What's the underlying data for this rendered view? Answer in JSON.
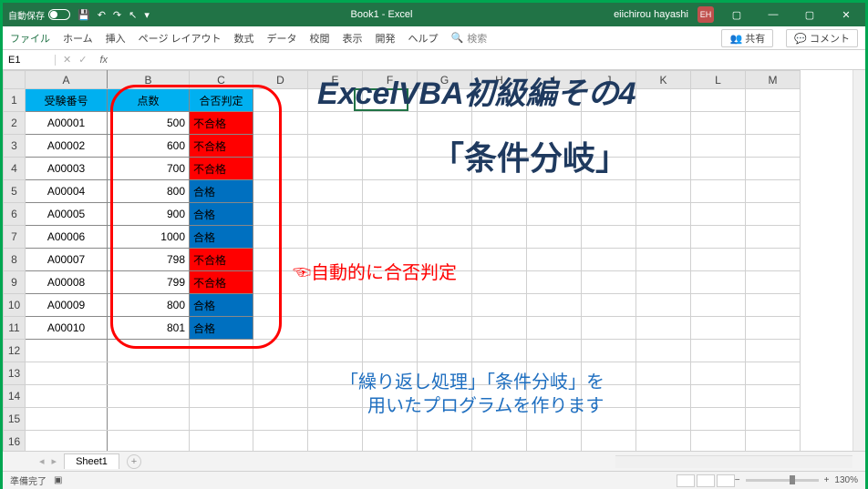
{
  "titlebar": {
    "autosave_label": "自動保存",
    "autosave_state": "オフ",
    "doc_title": "Book1 - Excel",
    "username": "eiichirou hayashi",
    "user_initials": "EH"
  },
  "ribbon": {
    "tabs": [
      "ファイル",
      "ホーム",
      "挿入",
      "ページ レイアウト",
      "数式",
      "データ",
      "校閲",
      "表示",
      "開発",
      "ヘルプ"
    ],
    "search_icon": "search-icon",
    "search_label": "検索",
    "share": "共有",
    "comment": "コメント"
  },
  "namebox": {
    "cell": "E1",
    "fx": "fx"
  },
  "columns": [
    "A",
    "B",
    "C",
    "D",
    "E",
    "F",
    "G",
    "H",
    "I",
    "J",
    "K",
    "L",
    "M"
  ],
  "rowcount": 17,
  "table": {
    "headers": {
      "A": "受験番号",
      "B": "点数",
      "C": "合否判定"
    },
    "rows": [
      {
        "id": "A00001",
        "score": 500,
        "result": "不合格",
        "status": "fail"
      },
      {
        "id": "A00002",
        "score": 600,
        "result": "不合格",
        "status": "fail"
      },
      {
        "id": "A00003",
        "score": 700,
        "result": "不合格",
        "status": "fail"
      },
      {
        "id": "A00004",
        "score": 800,
        "result": "合格",
        "status": "pass"
      },
      {
        "id": "A00005",
        "score": 900,
        "result": "合格",
        "status": "pass"
      },
      {
        "id": "A00006",
        "score": 1000,
        "result": "合格",
        "status": "pass"
      },
      {
        "id": "A00007",
        "score": 798,
        "result": "不合格",
        "status": "fail"
      },
      {
        "id": "A00008",
        "score": 799,
        "result": "不合格",
        "status": "fail"
      },
      {
        "id": "A00009",
        "score": 800,
        "result": "合格",
        "status": "pass"
      },
      {
        "id": "A00010",
        "score": 801,
        "result": "合格",
        "status": "pass"
      }
    ],
    "colors": {
      "header_bg": "#00b0f0",
      "pass_bg": "#0070c0",
      "fail_bg": "#ff0000",
      "grid": "#d0d0d0",
      "data_border": "#888888"
    }
  },
  "annotations": {
    "title": "ExcelVBA初級編その4",
    "subtitle": "「条件分岐」",
    "callout": "自動的に合否判定",
    "pointer": "☜",
    "desc_line1": "「繰り返し処理」「条件分岐」を",
    "desc_line2": "用いたプログラムを作ります",
    "circle_color": "#ff0000",
    "title_color": "#1f3a5f",
    "title_fontsize": 34,
    "subtitle_fontsize": 36,
    "callout_fontsize": 20,
    "desc_fontsize": 20
  },
  "sheettabs": {
    "sheet1": "Sheet1",
    "add": "+"
  },
  "statusbar": {
    "ready": "準備完了",
    "zoom": "130%",
    "plus": "+"
  },
  "active_cell": {
    "col": "E",
    "row": 1
  }
}
